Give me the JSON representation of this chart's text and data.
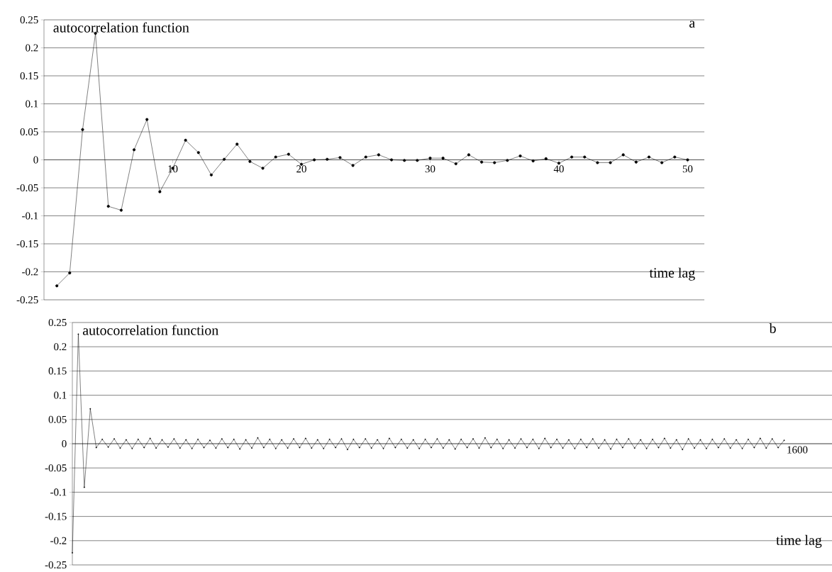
{
  "chart_data": [
    {
      "type": "line",
      "title": "a",
      "xlabel": "time lag",
      "ylabel": "autocorrelation function",
      "xlim": [
        0,
        51.3
      ],
      "xticks": [
        10,
        20,
        30,
        40,
        50
      ],
      "ylim": [
        -0.25,
        0.25
      ],
      "yticks": [
        -0.25,
        -0.2,
        -0.15,
        -0.1,
        -0.05,
        0,
        0.05,
        0.1,
        0.15,
        0.2,
        0.25
      ],
      "grid": "y",
      "marker": "circle",
      "line_style": "solid",
      "series": [
        {
          "color": "#000000",
          "x": [
            1,
            2,
            3,
            4,
            5,
            6,
            7,
            8,
            9,
            10,
            11,
            12,
            13,
            14,
            15,
            16,
            17,
            18,
            19,
            20,
            21,
            22,
            23,
            24,
            25,
            26,
            27,
            28,
            29,
            30,
            31,
            32,
            33,
            34,
            35,
            36,
            37,
            38,
            39,
            40,
            41,
            42,
            43,
            44,
            45,
            46,
            47,
            48,
            49,
            50
          ],
          "values": [
            -0.225,
            -0.202,
            0.054,
            0.226,
            -0.083,
            -0.09,
            0.018,
            0.072,
            -0.057,
            -0.015,
            0.035,
            0.013,
            -0.027,
            0.001,
            0.028,
            -0.003,
            -0.015,
            0.005,
            0.01,
            -0.008,
            0.0,
            0.001,
            0.004,
            -0.01,
            0.005,
            0.009,
            0.0,
            -0.001,
            -0.001,
            0.003,
            0.003,
            -0.007,
            0.009,
            -0.004,
            -0.005,
            -0.001,
            0.007,
            -0.002,
            0.002,
            -0.006,
            0.005,
            0.005,
            -0.005,
            -0.005,
            0.009,
            -0.004,
            0.005,
            -0.005,
            0.005,
            0.0
          ]
        }
      ]
    },
    {
      "type": "line",
      "title": "b",
      "xlabel": "time lag",
      "ylabel": "autocorrelation function",
      "annotations": [
        "1600"
      ],
      "ylim": [
        -0.25,
        0.25
      ],
      "yticks": [
        -0.25,
        -0.2,
        -0.15,
        -0.1,
        -0.05,
        0,
        0.05,
        0.1,
        0.15,
        0.2,
        0.25
      ],
      "grid": "y",
      "marker": "circle",
      "line_style": "solid",
      "categories": [
        null,
        null,
        null,
        null,
        null,
        null,
        null,
        null,
        null,
        null,
        null,
        null,
        null,
        null,
        null,
        null,
        null,
        null,
        null,
        null,
        null,
        null,
        null,
        null,
        null,
        null,
        null,
        null,
        null,
        null,
        null,
        null,
        null,
        null,
        null,
        null,
        null,
        null,
        null,
        null,
        null,
        null,
        null,
        null,
        null,
        null,
        null,
        null,
        null,
        null,
        null,
        null,
        null,
        null,
        null,
        null,
        null,
        null,
        null,
        null,
        null,
        null,
        null,
        null,
        null,
        null,
        null,
        null,
        null,
        null,
        null,
        null,
        null,
        null,
        null,
        null,
        null,
        null,
        null,
        null,
        null,
        null,
        null,
        null,
        null,
        null,
        null,
        null,
        null,
        null,
        null,
        null,
        null,
        null,
        null,
        null,
        null,
        null,
        null,
        null,
        null,
        null,
        null,
        null,
        null,
        null,
        null,
        null,
        null,
        null,
        null,
        null,
        null,
        null,
        null,
        null,
        null,
        null,
        null,
        null
      ],
      "series": [
        {
          "color": "#000000",
          "values": [
            -0.225,
            0.226,
            -0.09,
            0.072,
            -0.008,
            0.009,
            -0.007,
            0.01,
            -0.009,
            0.008,
            -0.01,
            0.009,
            -0.008,
            0.011,
            -0.009,
            0.008,
            -0.007,
            0.01,
            -0.009,
            0.008,
            -0.01,
            0.009,
            -0.008,
            0.007,
            -0.009,
            0.01,
            -0.008,
            0.009,
            -0.011,
            0.008,
            -0.009,
            0.012,
            -0.008,
            0.009,
            -0.01,
            0.008,
            -0.009,
            0.01,
            -0.008,
            0.011,
            -0.009,
            0.008,
            -0.01,
            0.009,
            -0.008,
            0.01,
            -0.012,
            0.009,
            -0.008,
            0.01,
            -0.009,
            0.008,
            -0.01,
            0.011,
            -0.008,
            0.009,
            -0.009,
            0.008,
            -0.01,
            0.009,
            -0.008,
            0.01,
            -0.009,
            0.008,
            -0.011,
            0.009,
            -0.008,
            0.01,
            -0.009,
            0.012,
            -0.008,
            0.009,
            -0.01,
            0.008,
            -0.009,
            0.01,
            -0.008,
            0.009,
            -0.01,
            0.011,
            -0.008,
            0.009,
            -0.009,
            0.008,
            -0.01,
            0.009,
            -0.008,
            0.01,
            -0.009,
            0.008,
            -0.011,
            0.009,
            -0.008,
            0.01,
            -0.009,
            0.008,
            -0.01,
            0.009,
            -0.008,
            0.011,
            -0.009,
            0.008,
            -0.012,
            0.01,
            -0.009,
            0.008,
            -0.01,
            0.009,
            -0.008,
            0.01,
            -0.009,
            0.008,
            -0.01,
            0.009,
            -0.008,
            0.011,
            -0.009,
            0.01,
            -0.008,
            0.007
          ]
        }
      ]
    }
  ]
}
